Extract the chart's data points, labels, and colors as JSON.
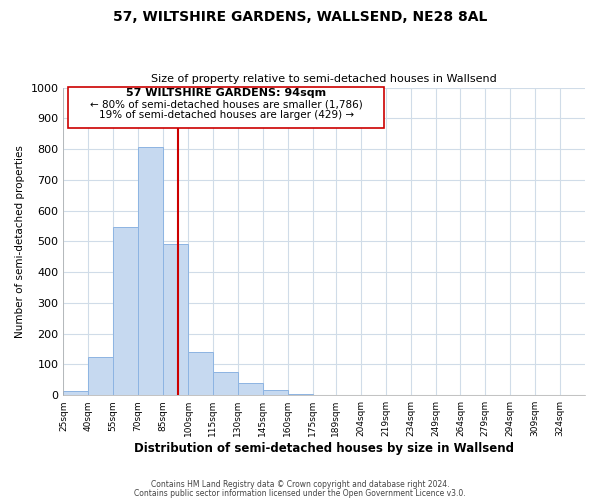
{
  "title": "57, WILTSHIRE GARDENS, WALLSEND, NE28 8AL",
  "subtitle": "Size of property relative to semi-detached houses in Wallsend",
  "xlabel": "Distribution of semi-detached houses by size in Wallsend",
  "ylabel": "Number of semi-detached properties",
  "bar_left_edges": [
    25,
    40,
    55,
    70,
    85,
    100,
    115,
    130,
    145,
    160,
    175,
    189,
    204,
    219,
    234,
    249,
    264,
    279,
    294,
    309
  ],
  "bar_widths": [
    15,
    15,
    15,
    15,
    15,
    15,
    15,
    15,
    15,
    15,
    14,
    15,
    15,
    15,
    15,
    15,
    15,
    15,
    15,
    15
  ],
  "bar_heights": [
    15,
    125,
    547,
    808,
    490,
    140,
    75,
    40,
    18,
    5,
    0,
    0,
    0,
    0,
    0,
    0,
    0,
    0,
    0,
    2
  ],
  "bar_color": "#c6d9f0",
  "bar_edge_color": "#8db4e2",
  "tick_labels": [
    "25sqm",
    "40sqm",
    "55sqm",
    "70sqm",
    "85sqm",
    "100sqm",
    "115sqm",
    "130sqm",
    "145sqm",
    "160sqm",
    "175sqm",
    "189sqm",
    "204sqm",
    "219sqm",
    "234sqm",
    "249sqm",
    "264sqm",
    "279sqm",
    "294sqm",
    "309sqm",
    "324sqm"
  ],
  "tick_positions": [
    25,
    40,
    55,
    70,
    85,
    100,
    115,
    130,
    145,
    160,
    175,
    189,
    204,
    219,
    234,
    249,
    264,
    279,
    294,
    309,
    324
  ],
  "ylim": [
    0,
    1000
  ],
  "yticks": [
    0,
    100,
    200,
    300,
    400,
    500,
    600,
    700,
    800,
    900,
    1000
  ],
  "xlim": [
    25,
    339
  ],
  "vline_x": 94,
  "vline_color": "#cc0000",
  "annotation_title": "57 WILTSHIRE GARDENS: 94sqm",
  "annotation_line1": "← 80% of semi-detached houses are smaller (1,786)",
  "annotation_line2": "19% of semi-detached houses are larger (429) →",
  "footer1": "Contains HM Land Registry data © Crown copyright and database right 2024.",
  "footer2": "Contains public sector information licensed under the Open Government Licence v3.0.",
  "grid_color": "#d0dce8",
  "background_color": "#ffffff"
}
